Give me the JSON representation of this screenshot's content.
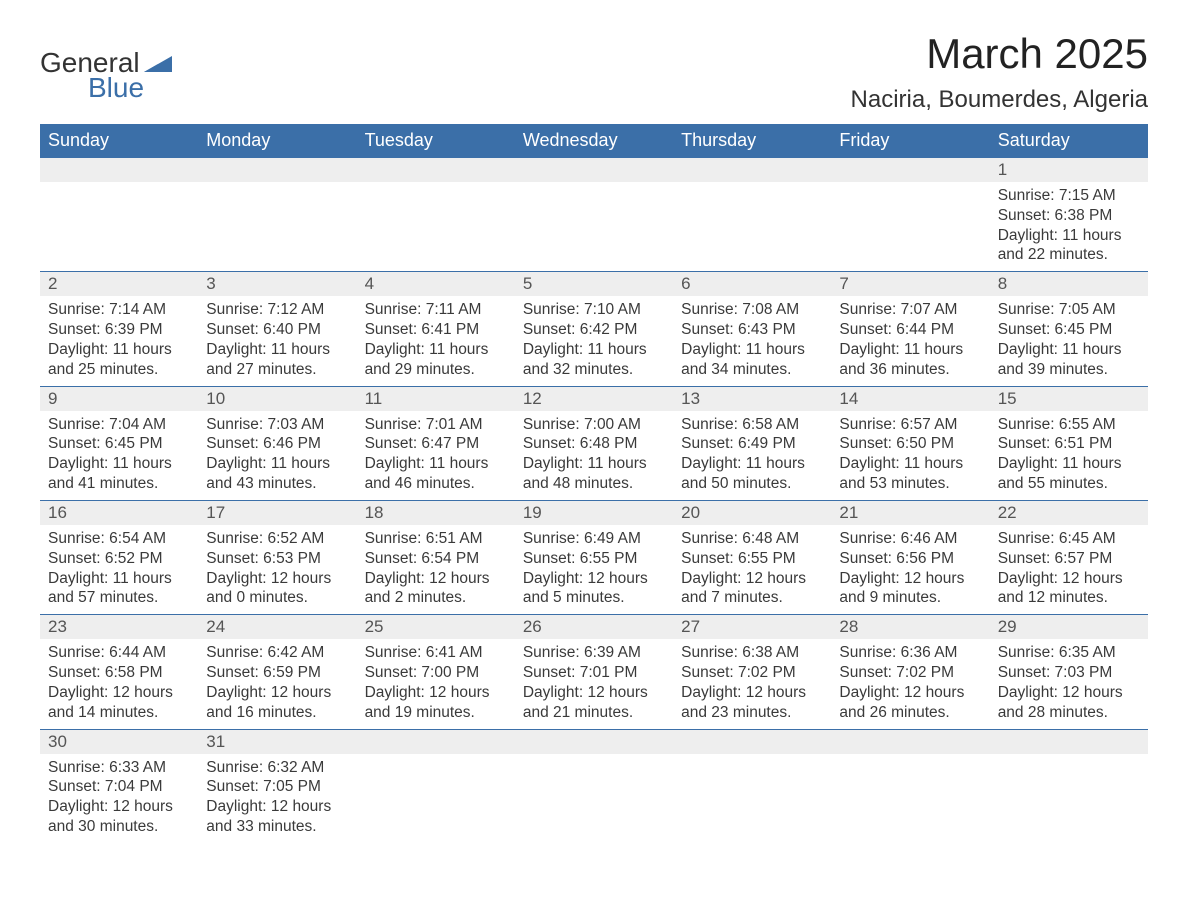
{
  "brand": {
    "line1": "General",
    "line2": "Blue",
    "triangle_color": "#3b6fa8"
  },
  "title": "March 2025",
  "location": "Naciria, Boumerdes, Algeria",
  "colors": {
    "header_bg": "#3b6fa8",
    "header_text": "#ffffff",
    "daynum_bg": "#eeeeee",
    "row_border": "#3b6fa8",
    "body_text": "#3a3a3a"
  },
  "weekdays": [
    "Sunday",
    "Monday",
    "Tuesday",
    "Wednesday",
    "Thursday",
    "Friday",
    "Saturday"
  ],
  "weeks": [
    [
      null,
      null,
      null,
      null,
      null,
      null,
      {
        "n": "1",
        "sr": "Sunrise: 7:15 AM",
        "ss": "Sunset: 6:38 PM",
        "d1": "Daylight: 11 hours",
        "d2": "and 22 minutes."
      }
    ],
    [
      {
        "n": "2",
        "sr": "Sunrise: 7:14 AM",
        "ss": "Sunset: 6:39 PM",
        "d1": "Daylight: 11 hours",
        "d2": "and 25 minutes."
      },
      {
        "n": "3",
        "sr": "Sunrise: 7:12 AM",
        "ss": "Sunset: 6:40 PM",
        "d1": "Daylight: 11 hours",
        "d2": "and 27 minutes."
      },
      {
        "n": "4",
        "sr": "Sunrise: 7:11 AM",
        "ss": "Sunset: 6:41 PM",
        "d1": "Daylight: 11 hours",
        "d2": "and 29 minutes."
      },
      {
        "n": "5",
        "sr": "Sunrise: 7:10 AM",
        "ss": "Sunset: 6:42 PM",
        "d1": "Daylight: 11 hours",
        "d2": "and 32 minutes."
      },
      {
        "n": "6",
        "sr": "Sunrise: 7:08 AM",
        "ss": "Sunset: 6:43 PM",
        "d1": "Daylight: 11 hours",
        "d2": "and 34 minutes."
      },
      {
        "n": "7",
        "sr": "Sunrise: 7:07 AM",
        "ss": "Sunset: 6:44 PM",
        "d1": "Daylight: 11 hours",
        "d2": "and 36 minutes."
      },
      {
        "n": "8",
        "sr": "Sunrise: 7:05 AM",
        "ss": "Sunset: 6:45 PM",
        "d1": "Daylight: 11 hours",
        "d2": "and 39 minutes."
      }
    ],
    [
      {
        "n": "9",
        "sr": "Sunrise: 7:04 AM",
        "ss": "Sunset: 6:45 PM",
        "d1": "Daylight: 11 hours",
        "d2": "and 41 minutes."
      },
      {
        "n": "10",
        "sr": "Sunrise: 7:03 AM",
        "ss": "Sunset: 6:46 PM",
        "d1": "Daylight: 11 hours",
        "d2": "and 43 minutes."
      },
      {
        "n": "11",
        "sr": "Sunrise: 7:01 AM",
        "ss": "Sunset: 6:47 PM",
        "d1": "Daylight: 11 hours",
        "d2": "and 46 minutes."
      },
      {
        "n": "12",
        "sr": "Sunrise: 7:00 AM",
        "ss": "Sunset: 6:48 PM",
        "d1": "Daylight: 11 hours",
        "d2": "and 48 minutes."
      },
      {
        "n": "13",
        "sr": "Sunrise: 6:58 AM",
        "ss": "Sunset: 6:49 PM",
        "d1": "Daylight: 11 hours",
        "d2": "and 50 minutes."
      },
      {
        "n": "14",
        "sr": "Sunrise: 6:57 AM",
        "ss": "Sunset: 6:50 PM",
        "d1": "Daylight: 11 hours",
        "d2": "and 53 minutes."
      },
      {
        "n": "15",
        "sr": "Sunrise: 6:55 AM",
        "ss": "Sunset: 6:51 PM",
        "d1": "Daylight: 11 hours",
        "d2": "and 55 minutes."
      }
    ],
    [
      {
        "n": "16",
        "sr": "Sunrise: 6:54 AM",
        "ss": "Sunset: 6:52 PM",
        "d1": "Daylight: 11 hours",
        "d2": "and 57 minutes."
      },
      {
        "n": "17",
        "sr": "Sunrise: 6:52 AM",
        "ss": "Sunset: 6:53 PM",
        "d1": "Daylight: 12 hours",
        "d2": "and 0 minutes."
      },
      {
        "n": "18",
        "sr": "Sunrise: 6:51 AM",
        "ss": "Sunset: 6:54 PM",
        "d1": "Daylight: 12 hours",
        "d2": "and 2 minutes."
      },
      {
        "n": "19",
        "sr": "Sunrise: 6:49 AM",
        "ss": "Sunset: 6:55 PM",
        "d1": "Daylight: 12 hours",
        "d2": "and 5 minutes."
      },
      {
        "n": "20",
        "sr": "Sunrise: 6:48 AM",
        "ss": "Sunset: 6:55 PM",
        "d1": "Daylight: 12 hours",
        "d2": "and 7 minutes."
      },
      {
        "n": "21",
        "sr": "Sunrise: 6:46 AM",
        "ss": "Sunset: 6:56 PM",
        "d1": "Daylight: 12 hours",
        "d2": "and 9 minutes."
      },
      {
        "n": "22",
        "sr": "Sunrise: 6:45 AM",
        "ss": "Sunset: 6:57 PM",
        "d1": "Daylight: 12 hours",
        "d2": "and 12 minutes."
      }
    ],
    [
      {
        "n": "23",
        "sr": "Sunrise: 6:44 AM",
        "ss": "Sunset: 6:58 PM",
        "d1": "Daylight: 12 hours",
        "d2": "and 14 minutes."
      },
      {
        "n": "24",
        "sr": "Sunrise: 6:42 AM",
        "ss": "Sunset: 6:59 PM",
        "d1": "Daylight: 12 hours",
        "d2": "and 16 minutes."
      },
      {
        "n": "25",
        "sr": "Sunrise: 6:41 AM",
        "ss": "Sunset: 7:00 PM",
        "d1": "Daylight: 12 hours",
        "d2": "and 19 minutes."
      },
      {
        "n": "26",
        "sr": "Sunrise: 6:39 AM",
        "ss": "Sunset: 7:01 PM",
        "d1": "Daylight: 12 hours",
        "d2": "and 21 minutes."
      },
      {
        "n": "27",
        "sr": "Sunrise: 6:38 AM",
        "ss": "Sunset: 7:02 PM",
        "d1": "Daylight: 12 hours",
        "d2": "and 23 minutes."
      },
      {
        "n": "28",
        "sr": "Sunrise: 6:36 AM",
        "ss": "Sunset: 7:02 PM",
        "d1": "Daylight: 12 hours",
        "d2": "and 26 minutes."
      },
      {
        "n": "29",
        "sr": "Sunrise: 6:35 AM",
        "ss": "Sunset: 7:03 PM",
        "d1": "Daylight: 12 hours",
        "d2": "and 28 minutes."
      }
    ],
    [
      {
        "n": "30",
        "sr": "Sunrise: 6:33 AM",
        "ss": "Sunset: 7:04 PM",
        "d1": "Daylight: 12 hours",
        "d2": "and 30 minutes."
      },
      {
        "n": "31",
        "sr": "Sunrise: 6:32 AM",
        "ss": "Sunset: 7:05 PM",
        "d1": "Daylight: 12 hours",
        "d2": "and 33 minutes."
      },
      null,
      null,
      null,
      null,
      null
    ]
  ]
}
